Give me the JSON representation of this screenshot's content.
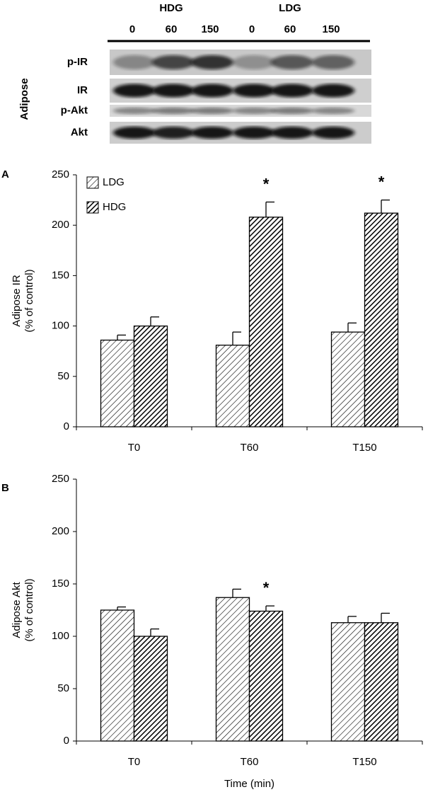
{
  "blot": {
    "groups": [
      "HDG",
      "LDG"
    ],
    "lanes": [
      "0",
      "60",
      "150",
      "0",
      "60",
      "150"
    ],
    "tissue": "Adipose",
    "rows": [
      "p-IR",
      "IR",
      "p-Akt",
      "Akt"
    ]
  },
  "chart_data": [
    {
      "type": "bar",
      "panel": "A",
      "ylabel": [
        "Adipose IR",
        "(% of control)"
      ],
      "categories": [
        "T0",
        "T60",
        "T150"
      ],
      "series": [
        {
          "name": "LDG",
          "color": "#000000",
          "hatch": "light",
          "values": [
            86,
            81,
            94
          ],
          "errors": [
            5,
            13,
            9
          ],
          "labels": [
            null,
            null,
            null
          ]
        },
        {
          "name": "HDG",
          "color": "#000000",
          "hatch": "dense",
          "values": [
            100,
            208,
            212
          ],
          "errors": [
            9,
            15,
            13
          ],
          "labels": [
            null,
            "*",
            "*"
          ]
        }
      ],
      "ylim": [
        0,
        250
      ],
      "yticks": [
        0,
        50,
        100,
        150,
        200,
        250
      ],
      "legend": "top-left"
    },
    {
      "type": "bar",
      "panel": "B",
      "ylabel": [
        "Adipose Akt",
        "(% of control)"
      ],
      "xlabel": "Time (min)",
      "categories": [
        "T0",
        "T60",
        "T150"
      ],
      "series": [
        {
          "name": "LDG",
          "color": "#000000",
          "hatch": "light",
          "values": [
            125,
            137,
            113
          ],
          "errors": [
            3,
            8,
            6
          ],
          "labels": [
            null,
            null,
            null
          ]
        },
        {
          "name": "HDG",
          "color": "#000000",
          "hatch": "dense",
          "values": [
            100,
            124,
            113
          ],
          "errors": [
            7,
            5,
            9
          ],
          "labels": [
            null,
            "*",
            null
          ]
        }
      ],
      "ylim": [
        0,
        250
      ],
      "yticks": [
        0,
        50,
        100,
        150,
        200,
        250
      ]
    }
  ]
}
